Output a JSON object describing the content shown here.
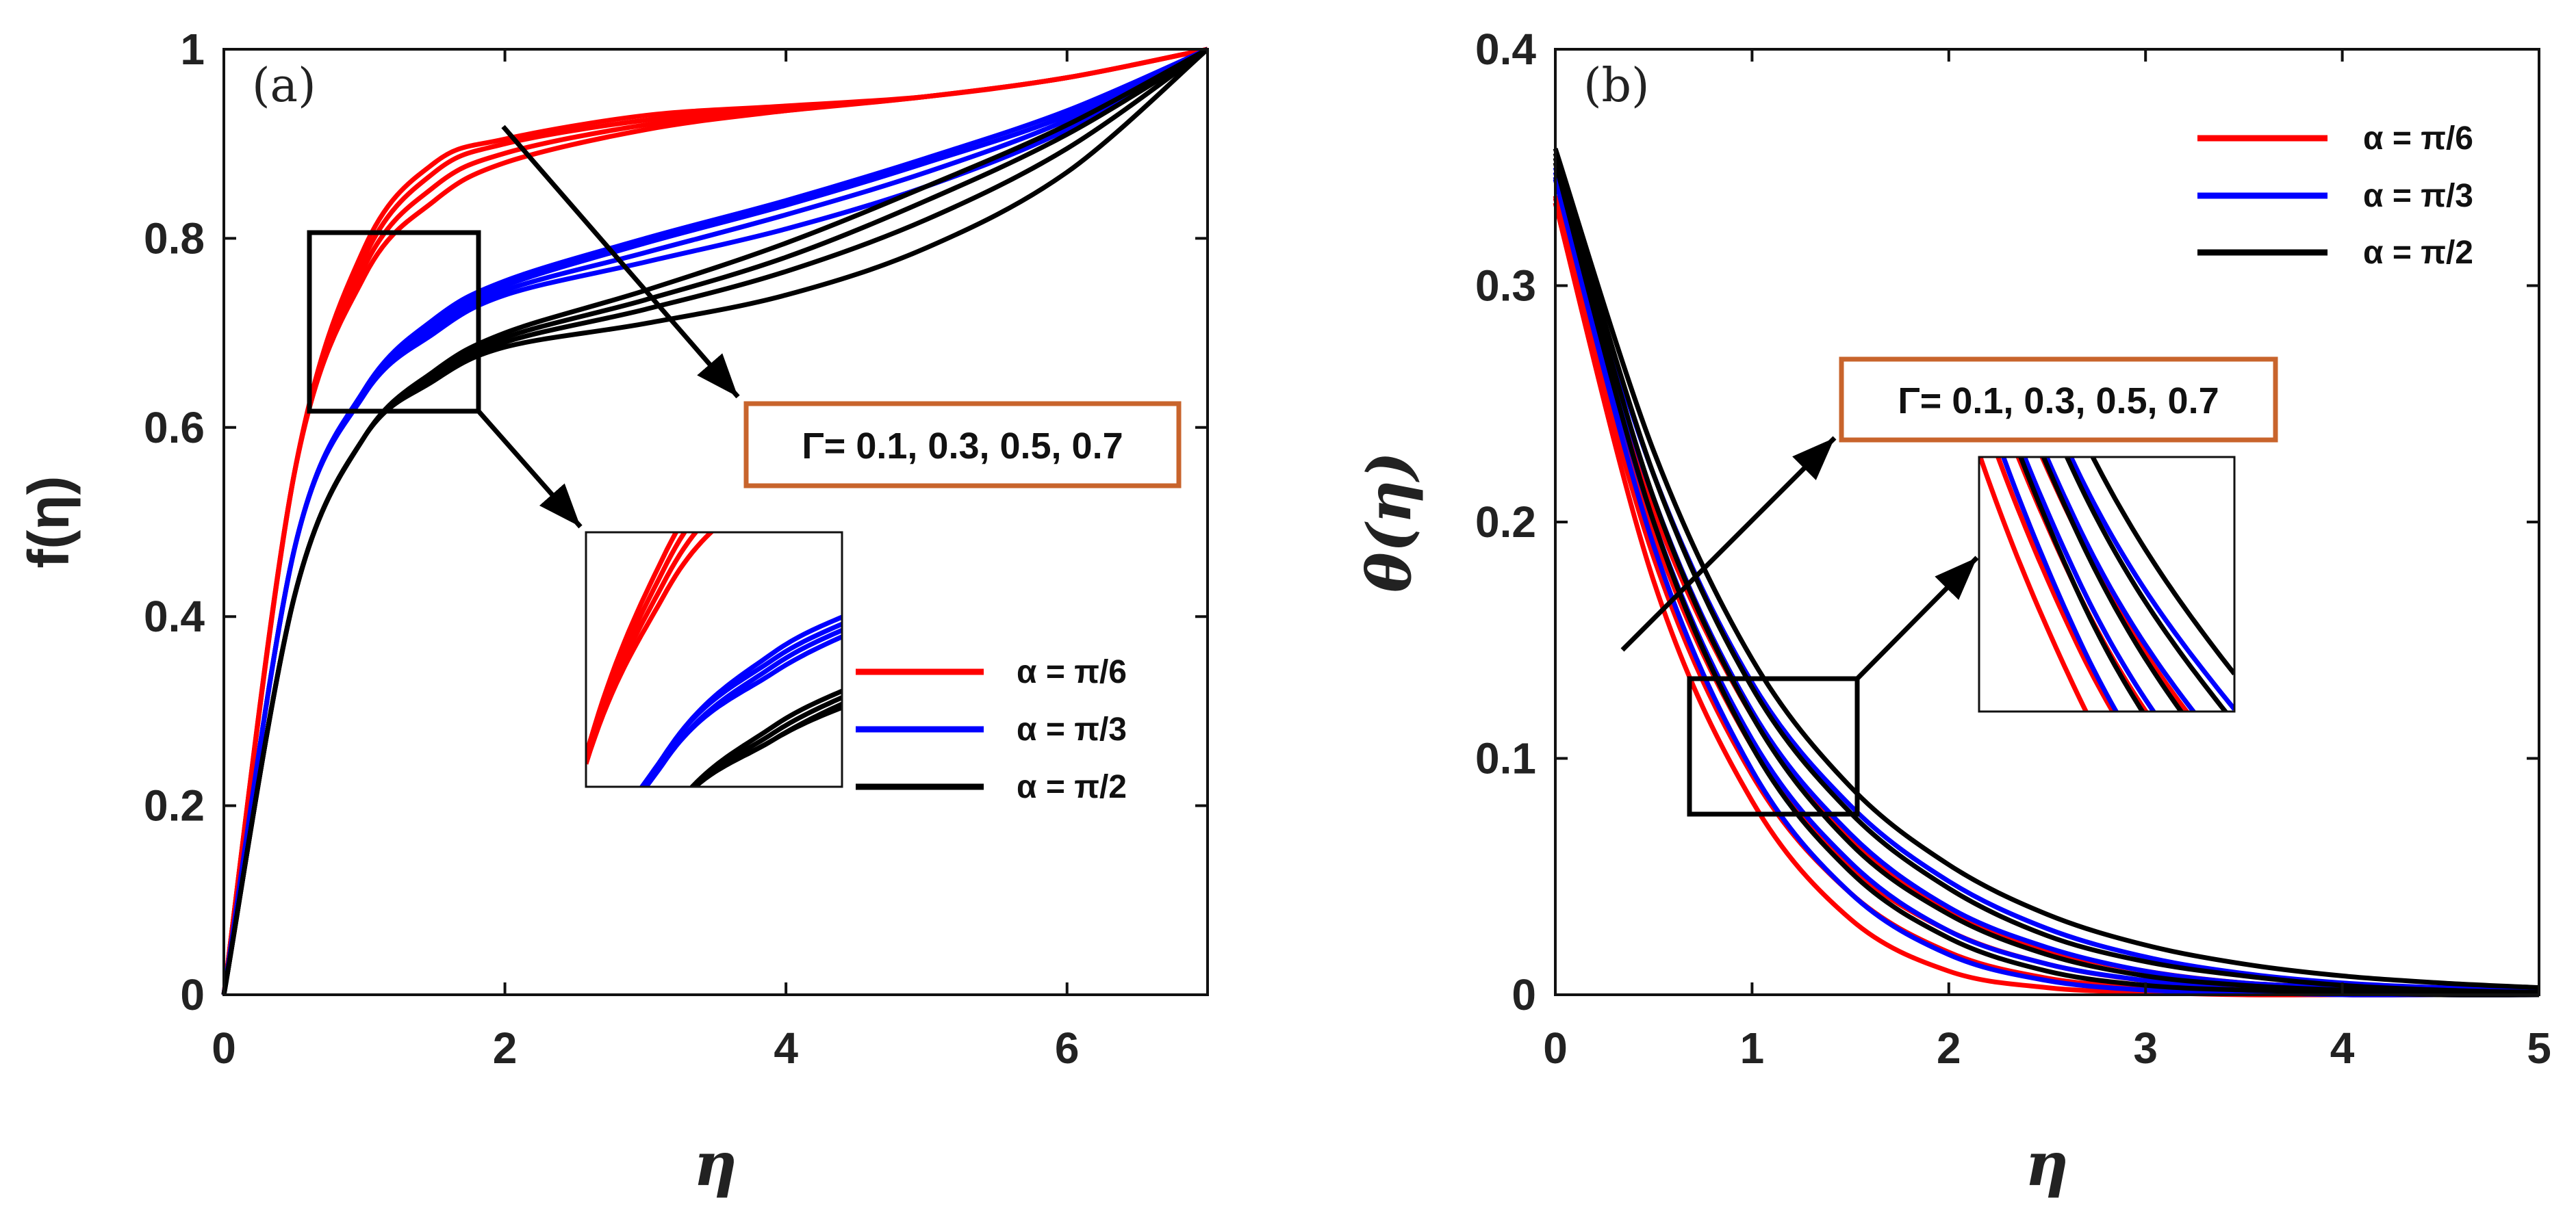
{
  "colors": {
    "alpha1": "#ff0000",
    "alpha2": "#0000ff",
    "alpha3": "#000000",
    "annotation_box": "#c8642c"
  },
  "chart_data": [
    {
      "type": "line",
      "panel_label": "(a)",
      "xlabel": "η",
      "ylabel": "f(η)",
      "xlim": [
        0,
        7
      ],
      "ylim": [
        0,
        1
      ],
      "xticks": [
        "0",
        "2",
        "4",
        "6"
      ],
      "yticks": [
        "0",
        "0.2",
        "0.4",
        "0.6",
        "0.8",
        "1"
      ],
      "annotation": "Γ= 0.1, 0.3, 0.5, 0.7",
      "legend": [
        {
          "label": "α = π/6",
          "color": "#ff0000"
        },
        {
          "label": "α = π/3",
          "color": "#0000ff"
        },
        {
          "label": "α = π/2",
          "color": "#000000"
        }
      ],
      "gamma": [
        0.1,
        0.3,
        0.5,
        0.7
      ],
      "x": [
        0,
        0.5,
        1,
        1.5,
        2,
        3,
        4,
        5,
        6,
        7
      ],
      "series": [
        {
          "name": "α = π/6, Γ = 0.1",
          "color": "#ff0000",
          "values": [
            0,
            0.55,
            0.79,
            0.88,
            0.905,
            0.93,
            0.94,
            0.95,
            0.97,
            1
          ]
        },
        {
          "name": "α = π/6, Γ = 0.3",
          "color": "#ff0000",
          "values": [
            0,
            0.55,
            0.78,
            0.87,
            0.9,
            0.925,
            0.937,
            0.95,
            0.97,
            1
          ]
        },
        {
          "name": "α = π/6, Γ = 0.5",
          "color": "#ff0000",
          "values": [
            0,
            0.55,
            0.77,
            0.855,
            0.89,
            0.92,
            0.935,
            0.95,
            0.97,
            1
          ]
        },
        {
          "name": "α = π/6, Γ = 0.7",
          "color": "#ff0000",
          "values": [
            0,
            0.55,
            0.76,
            0.84,
            0.88,
            0.915,
            0.935,
            0.95,
            0.97,
            1
          ]
        },
        {
          "name": "α = π/3, Γ = 0.1",
          "color": "#0000ff",
          "values": [
            0,
            0.47,
            0.64,
            0.715,
            0.755,
            0.8,
            0.84,
            0.885,
            0.935,
            1
          ]
        },
        {
          "name": "α = π/3, Γ = 0.3",
          "color": "#0000ff",
          "values": [
            0,
            0.47,
            0.64,
            0.71,
            0.75,
            0.795,
            0.835,
            0.88,
            0.93,
            1
          ]
        },
        {
          "name": "α = π/3, Γ = 0.5",
          "color": "#0000ff",
          "values": [
            0,
            0.47,
            0.635,
            0.705,
            0.745,
            0.785,
            0.825,
            0.87,
            0.925,
            1
          ]
        },
        {
          "name": "α = π/3, Γ = 0.7",
          "color": "#0000ff",
          "values": [
            0,
            0.47,
            0.635,
            0.7,
            0.74,
            0.775,
            0.81,
            0.855,
            0.915,
            1
          ]
        },
        {
          "name": "α = π/2, Γ = 0.1",
          "color": "#000000",
          "values": [
            0,
            0.42,
            0.59,
            0.66,
            0.7,
            0.745,
            0.795,
            0.855,
            0.92,
            1
          ]
        },
        {
          "name": "α = π/2, Γ = 0.3",
          "color": "#000000",
          "values": [
            0,
            0.42,
            0.59,
            0.655,
            0.695,
            0.735,
            0.78,
            0.84,
            0.91,
            1
          ]
        },
        {
          "name": "α = π/2, Γ = 0.5",
          "color": "#000000",
          "values": [
            0,
            0.42,
            0.59,
            0.65,
            0.69,
            0.725,
            0.765,
            0.82,
            0.895,
            1
          ]
        },
        {
          "name": "α = π/2, Γ = 0.7",
          "color": "#000000",
          "values": [
            0,
            0.42,
            0.59,
            0.65,
            0.685,
            0.71,
            0.74,
            0.79,
            0.87,
            1
          ]
        }
      ]
    },
    {
      "type": "line",
      "panel_label": "(b)",
      "xlabel": "η",
      "ylabel": "θ(η)",
      "xlim": [
        0,
        5
      ],
      "ylim": [
        0,
        0.4
      ],
      "xticks": [
        "0",
        "1",
        "2",
        "3",
        "4",
        "5"
      ],
      "yticks": [
        "0",
        "0.1",
        "0.2",
        "0.3",
        "0.4"
      ],
      "annotation": "Γ= 0.1, 0.3, 0.5, 0.7",
      "legend": [
        {
          "label": "α = π/6",
          "color": "#ff0000"
        },
        {
          "label": "α = π/3",
          "color": "#0000ff"
        },
        {
          "label": "α = π/2",
          "color": "#000000"
        }
      ],
      "gamma": [
        0.1,
        0.3,
        0.5,
        0.7
      ],
      "x": [
        0,
        0.5,
        1,
        1.5,
        2,
        2.5,
        3,
        3.5,
        4,
        4.5,
        5
      ],
      "series": [
        {
          "name": "α = π/6, Γ = 0.1",
          "color": "#ff0000",
          "values": [
            0.335,
            0.175,
            0.082,
            0.032,
            0.01,
            0.003,
            0.001,
            0,
            0,
            0,
            0
          ]
        },
        {
          "name": "α = π/6, Γ = 0.3",
          "color": "#ff0000",
          "values": [
            0.335,
            0.185,
            0.093,
            0.043,
            0.018,
            0.007,
            0.003,
            0.001,
            0,
            0,
            0
          ]
        },
        {
          "name": "α = π/6, Γ = 0.5",
          "color": "#ff0000",
          "values": [
            0.337,
            0.195,
            0.105,
            0.054,
            0.027,
            0.013,
            0.006,
            0.003,
            0.001,
            0.001,
            0
          ]
        },
        {
          "name": "α = π/6, Γ = 0.7",
          "color": "#ff0000",
          "values": [
            0.338,
            0.205,
            0.118,
            0.066,
            0.036,
            0.019,
            0.01,
            0.005,
            0.003,
            0.001,
            0.001
          ]
        },
        {
          "name": "α = π/3, Γ = 0.1",
          "color": "#0000ff",
          "values": [
            0.345,
            0.19,
            0.095,
            0.043,
            0.017,
            0.006,
            0.002,
            0.001,
            0,
            0,
            0
          ]
        },
        {
          "name": "α = π/3, Γ = 0.3",
          "color": "#0000ff",
          "values": [
            0.346,
            0.2,
            0.108,
            0.056,
            0.027,
            0.013,
            0.006,
            0.002,
            0.001,
            0,
            0
          ]
        },
        {
          "name": "α = π/3, Γ = 0.5",
          "color": "#0000ff",
          "values": [
            0.348,
            0.21,
            0.12,
            0.068,
            0.037,
            0.02,
            0.01,
            0.005,
            0.003,
            0.001,
            0.001
          ]
        },
        {
          "name": "α = π/3, Γ = 0.7",
          "color": "#0000ff",
          "values": [
            0.35,
            0.22,
            0.132,
            0.08,
            0.048,
            0.028,
            0.016,
            0.009,
            0.005,
            0.003,
            0.002
          ]
        },
        {
          "name": "α = π/2, Γ = 0.1",
          "color": "#000000",
          "values": [
            0.352,
            0.2,
            0.105,
            0.052,
            0.024,
            0.01,
            0.004,
            0.002,
            0.001,
            0,
            0
          ]
        },
        {
          "name": "α = π/2, Γ = 0.3",
          "color": "#000000",
          "values": [
            0.354,
            0.21,
            0.118,
            0.064,
            0.034,
            0.017,
            0.008,
            0.004,
            0.002,
            0.001,
            0
          ]
        },
        {
          "name": "α = π/2, Γ = 0.5",
          "color": "#000000",
          "values": [
            0.356,
            0.22,
            0.13,
            0.077,
            0.045,
            0.025,
            0.014,
            0.008,
            0.004,
            0.002,
            0.001
          ]
        },
        {
          "name": "α = π/2, Γ = 0.7",
          "color": "#000000",
          "values": [
            0.358,
            0.23,
            0.142,
            0.088,
            0.055,
            0.034,
            0.021,
            0.013,
            0.008,
            0.005,
            0.003
          ]
        }
      ]
    }
  ]
}
